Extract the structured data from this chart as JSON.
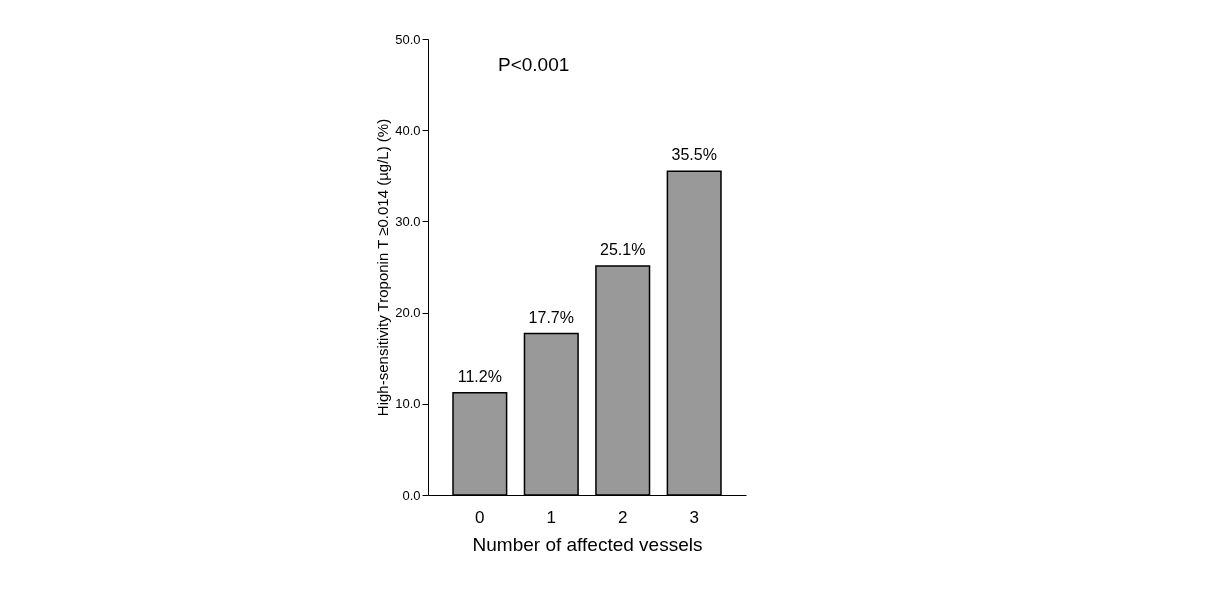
{
  "chart_data": {
    "type": "bar",
    "categories": [
      "0",
      "1",
      "2",
      "3"
    ],
    "values": [
      11.2,
      17.7,
      25.1,
      35.5
    ],
    "color": "#999999",
    "value_labels": [
      "11.2%",
      "17.7%",
      "25.1%",
      "35.5%"
    ],
    "xlabel": "Number of affected vessels",
    "ylabel": "High-sensitivity Troponin T ≥0.014 (µg/L) (%)",
    "ylim": [
      0,
      50
    ],
    "yticks": [
      {
        "value": 0,
        "label": "0.0"
      },
      {
        "value": 10,
        "label": "10.0"
      },
      {
        "value": 20,
        "label": "20.0"
      },
      {
        "value": 30,
        "label": "30.0"
      },
      {
        "value": 40,
        "label": "40.0"
      },
      {
        "value": 50,
        "label": "50.0"
      }
    ],
    "annotations": [
      "P<0.001"
    ],
    "grid": false
  }
}
